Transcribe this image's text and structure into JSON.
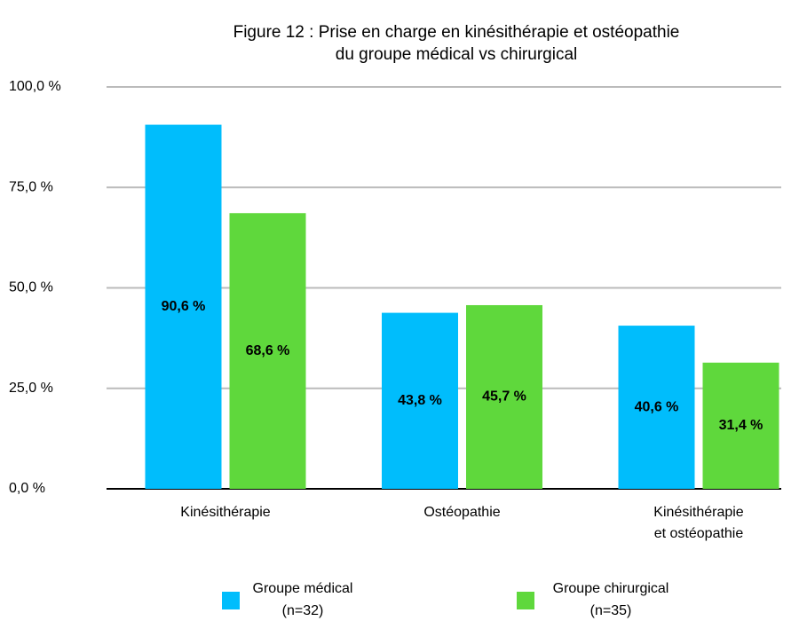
{
  "chart_data": {
    "type": "bar",
    "title": [
      "Figure 12 : Prise en charge en kinésithérapie et ostéopathie",
      "du groupe médical vs chirurgical"
    ],
    "categories": [
      [
        "Kinésithérapie"
      ],
      [
        "Ostéopathie"
      ],
      [
        "Kinésithérapie",
        "et ostéopathie"
      ]
    ],
    "series": [
      {
        "name": [
          "Groupe médical",
          "(n=32)"
        ],
        "color": "#00bdfc",
        "values": [
          90.6,
          43.8,
          40.6
        ],
        "value_labels": [
          "90,6 %",
          "43,8 %",
          "40,6 %"
        ]
      },
      {
        "name": [
          "Groupe chirurgical",
          "(n=35)"
        ],
        "color": "#5fd83c",
        "values": [
          68.6,
          45.7,
          31.4
        ],
        "value_labels": [
          "68,6 %",
          "45,7 %",
          "31,4 %"
        ]
      }
    ],
    "ylim": [
      0,
      100
    ],
    "yticks": [
      {
        "value": 0,
        "label": "0,0 %"
      },
      {
        "value": 25,
        "label": "25,0 %"
      },
      {
        "value": 50,
        "label": "50,0 %"
      },
      {
        "value": 75,
        "label": "75,0 %"
      },
      {
        "value": 100,
        "label": "100,0 %"
      }
    ],
    "grid": true
  }
}
